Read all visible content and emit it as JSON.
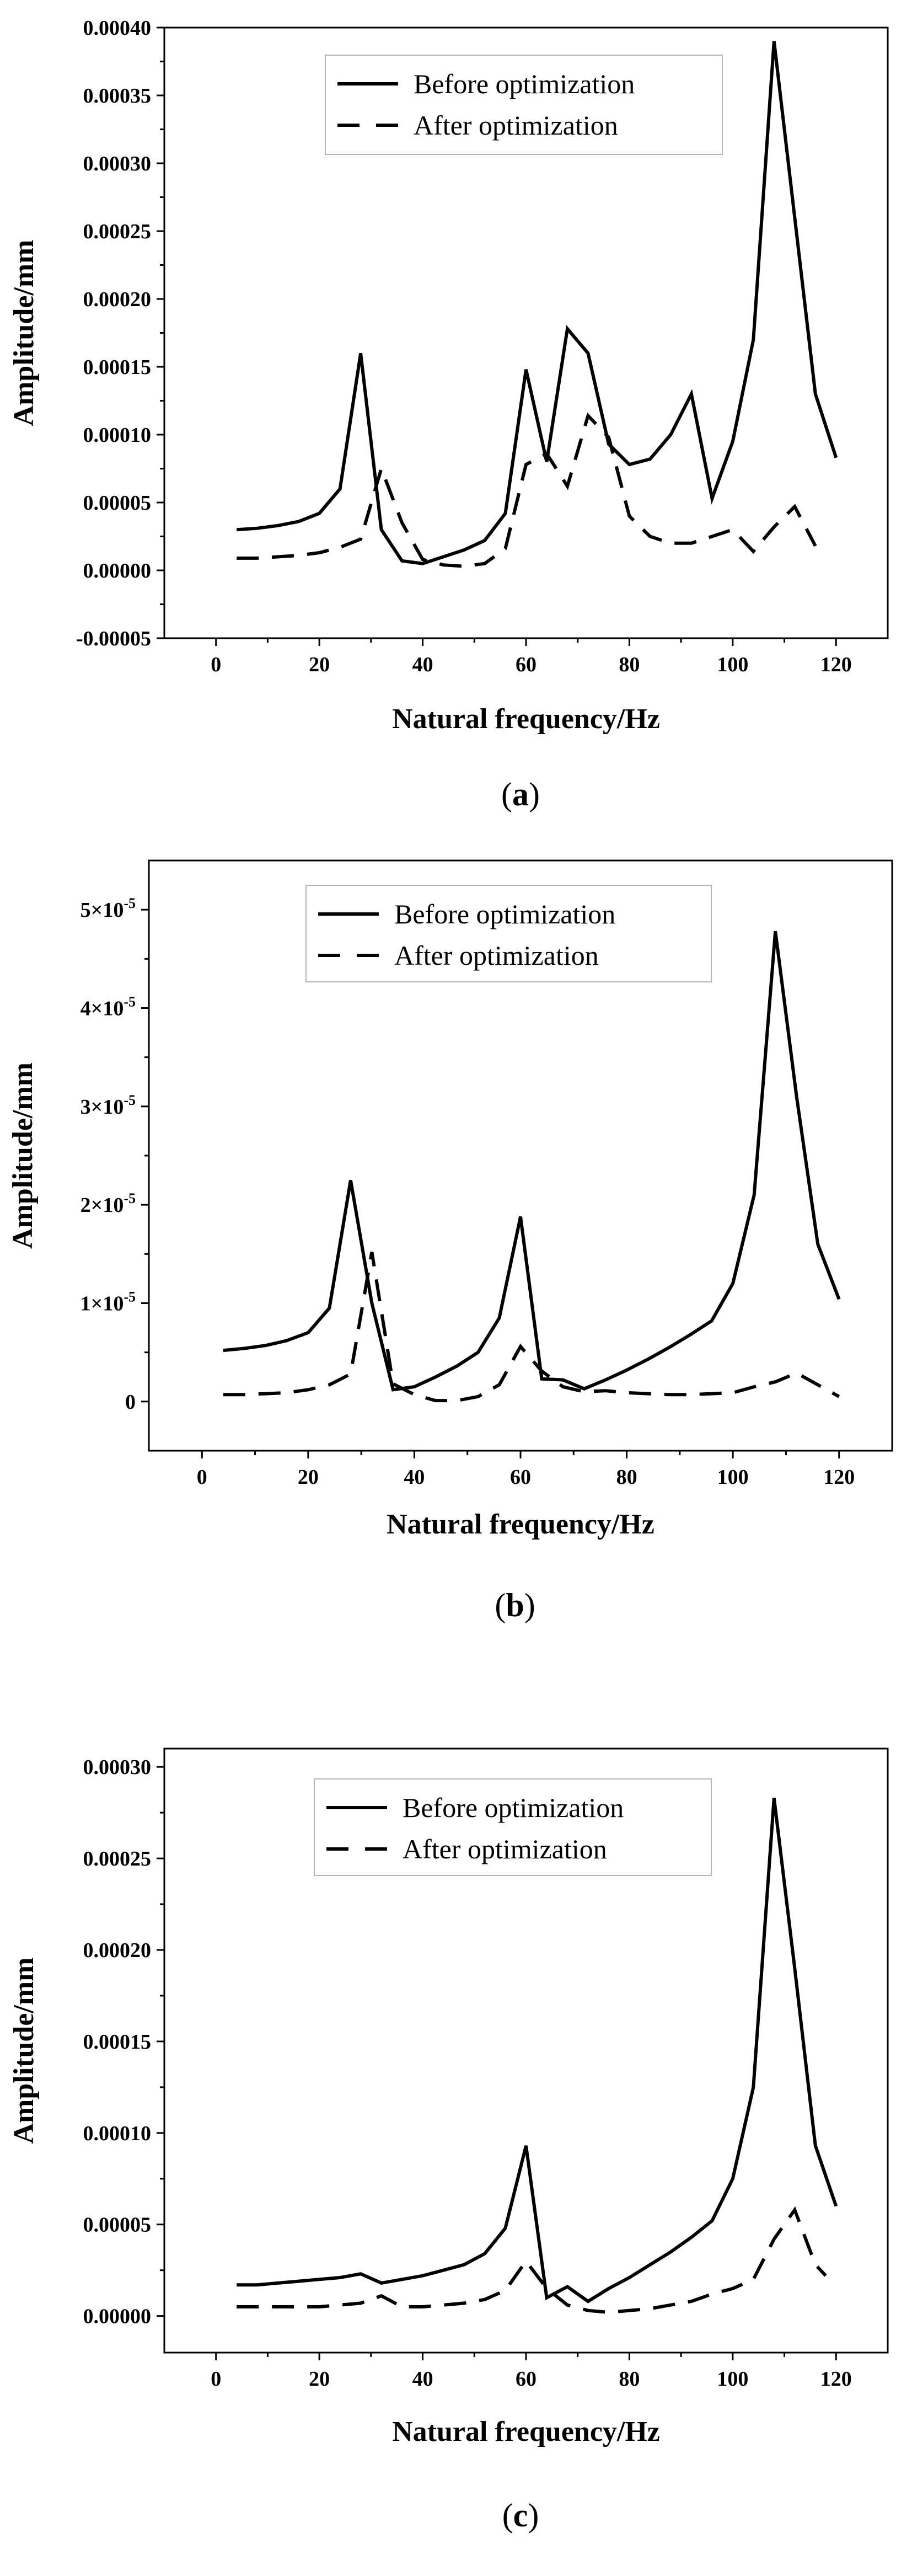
{
  "chart_data": [
    {
      "type": "line",
      "panel_label": "a",
      "xlabel": "Natural frequency/Hz",
      "ylabel": "Amplitude/mm",
      "xlim": [
        -10,
        130
      ],
      "ylim": [
        -5e-05,
        0.0004
      ],
      "xticks": [
        0,
        20,
        40,
        60,
        80,
        100,
        120
      ],
      "xtick_labels": [
        "0",
        "20",
        "40",
        "60",
        "80",
        "100",
        "120"
      ],
      "yticks": [
        -5e-05,
        0,
        5e-05,
        0.0001,
        0.00015,
        0.0002,
        0.00025,
        0.0003,
        0.00035,
        0.0004
      ],
      "ytick_labels": [
        "-0.00005",
        "0.00000",
        "0.00005",
        "0.00010",
        "0.00015",
        "0.00020",
        "0.00025",
        "0.00030",
        "0.00035",
        "0.00040"
      ],
      "legend_position": "top-center",
      "series": [
        {
          "name": "Before optimization",
          "style": "solid",
          "x": [
            4,
            8,
            12,
            16,
            20,
            24,
            28,
            32,
            36,
            40,
            44,
            48,
            52,
            56,
            60,
            64,
            68,
            72,
            76,
            80,
            84,
            88,
            92,
            96,
            100,
            104,
            108,
            112,
            116,
            120
          ],
          "y": [
            3e-05,
            3.1e-05,
            3.3e-05,
            3.6e-05,
            4.2e-05,
            6e-05,
            0.00016,
            3e-05,
            7e-06,
            5e-06,
            1e-05,
            1.5e-05,
            2.2e-05,
            4.2e-05,
            0.000148,
            8e-05,
            0.000178,
            0.00016,
            9.3e-05,
            7.8e-05,
            8.2e-05,
            0.0001,
            0.00013,
            5.3e-05,
            9.5e-05,
            0.00017,
            0.00039,
            0.00026,
            0.00013,
            8.3e-05
          ]
        },
        {
          "name": "After optimization",
          "style": "dashed",
          "x": [
            4,
            8,
            12,
            16,
            20,
            24,
            28,
            32,
            36,
            40,
            44,
            48,
            52,
            56,
            60,
            64,
            68,
            72,
            76,
            80,
            84,
            88,
            92,
            96,
            100,
            104,
            108,
            112,
            116
          ],
          "y": [
            9e-06,
            9e-06,
            1e-05,
            1.1e-05,
            1.3e-05,
            1.7e-05,
            2.3e-05,
            7.5e-05,
            3.5e-05,
            8e-06,
            4e-06,
            3e-06,
            5e-06,
            1.6e-05,
            7.8e-05,
            8.6e-05,
            6.2e-05,
            0.000114,
            9.8e-05,
            4e-05,
            2.5e-05,
            2e-05,
            2e-05,
            2.5e-05,
            3e-05,
            1.4e-05,
            3.2e-05,
            4.7e-05,
            1.8e-05
          ]
        }
      ]
    },
    {
      "type": "line",
      "panel_label": "b",
      "xlabel": "Natural frequency/Hz",
      "ylabel": "Amplitude/mm",
      "xlim": [
        -10,
        130
      ],
      "ylim": [
        -5e-06,
        5.5e-05
      ],
      "xticks": [
        0,
        20,
        40,
        60,
        80,
        100,
        120
      ],
      "xtick_labels": [
        "0",
        "20",
        "40",
        "60",
        "80",
        "100",
        "120"
      ],
      "yticks": [
        0,
        1e-05,
        2e-05,
        3e-05,
        4e-05,
        5e-05
      ],
      "ytick_labels": [
        {
          "mantissa": "0",
          "exponent": ""
        },
        {
          "mantissa": "1×10",
          "exponent": "-5"
        },
        {
          "mantissa": "2×10",
          "exponent": "-5"
        },
        {
          "mantissa": "3×10",
          "exponent": "-5"
        },
        {
          "mantissa": "4×10",
          "exponent": "-5"
        },
        {
          "mantissa": "5×10",
          "exponent": "-5"
        }
      ],
      "legend_position": "top-center",
      "series": [
        {
          "name": "Before optimization",
          "style": "solid",
          "x": [
            4,
            8,
            12,
            16,
            20,
            24,
            28,
            32,
            36,
            40,
            44,
            48,
            52,
            56,
            60,
            64,
            68,
            72,
            76,
            80,
            84,
            88,
            92,
            96,
            100,
            104,
            108,
            112,
            116,
            120
          ],
          "y": [
            5.2e-06,
            5.4e-06,
            5.7e-06,
            6.2e-06,
            7e-06,
            9.5e-06,
            2.25e-05,
            1e-05,
            1.2e-06,
            1.5e-06,
            2.5e-06,
            3.6e-06,
            5e-06,
            8.5e-06,
            1.88e-05,
            2.3e-06,
            2.2e-06,
            1.3e-06,
            2.2e-06,
            3.2e-06,
            4.3e-06,
            5.5e-06,
            6.8e-06,
            8.2e-06,
            1.2e-05,
            2.1e-05,
            4.78e-05,
            3.1e-05,
            1.6e-05,
            1.04e-05
          ]
        },
        {
          "name": "After optimization",
          "style": "dashed",
          "x": [
            4,
            8,
            12,
            16,
            20,
            24,
            28,
            32,
            36,
            40,
            44,
            48,
            52,
            56,
            60,
            64,
            68,
            72,
            76,
            80,
            84,
            88,
            92,
            96,
            100,
            104,
            108,
            112,
            116,
            120
          ],
          "y": [
            7e-07,
            7e-07,
            8e-07,
            9e-07,
            1.2e-06,
            1.7e-06,
            2.8e-06,
            1.52e-05,
            1.8e-06,
            7e-07,
            1e-07,
            1e-07,
            5e-07,
            1.7e-06,
            5.6e-06,
            3.1e-06,
            1.5e-06,
            1e-06,
            1.1e-06,
            9e-07,
            8e-07,
            7e-07,
            7e-07,
            8e-07,
            9e-07,
            1.5e-06,
            2e-06,
            2.9e-06,
            1.7e-06,
            5e-07
          ]
        }
      ]
    },
    {
      "type": "line",
      "panel_label": "c",
      "xlabel": "Natural frequency/Hz",
      "ylabel": "Amplitude/mm",
      "xlim": [
        -10,
        130
      ],
      "ylim": [
        -2e-05,
        0.00031
      ],
      "xticks": [
        0,
        20,
        40,
        60,
        80,
        100,
        120
      ],
      "xtick_labels": [
        "0",
        "20",
        "40",
        "60",
        "80",
        "100",
        "120"
      ],
      "yticks": [
        0,
        5e-05,
        0.0001,
        0.00015,
        0.0002,
        0.00025,
        0.0003
      ],
      "ytick_labels": [
        "0.00000",
        "0.00005",
        "0.00010",
        "0.00015",
        "0.00020",
        "0.00025",
        "0.00030"
      ],
      "legend_position": "top-center",
      "series": [
        {
          "name": "Before optimization",
          "style": "solid",
          "x": [
            4,
            8,
            12,
            16,
            20,
            24,
            28,
            32,
            36,
            40,
            44,
            48,
            52,
            56,
            60,
            64,
            68,
            72,
            76,
            80,
            84,
            88,
            92,
            96,
            100,
            104,
            108,
            112,
            116,
            120
          ],
          "y": [
            1.7e-05,
            1.7e-05,
            1.8e-05,
            1.9e-05,
            2e-05,
            2.1e-05,
            2.3e-05,
            1.8e-05,
            2e-05,
            2.2e-05,
            2.5e-05,
            2.8e-05,
            3.4e-05,
            4.8e-05,
            9.3e-05,
            1e-05,
            1.6e-05,
            8e-06,
            1.5e-05,
            2.1e-05,
            2.8e-05,
            3.5e-05,
            4.3e-05,
            5.2e-05,
            7.5e-05,
            0.000125,
            0.000283,
            0.00019,
            9.3e-05,
            6e-05
          ]
        },
        {
          "name": "After optimization",
          "style": "dashed",
          "x": [
            4,
            8,
            12,
            16,
            20,
            24,
            28,
            32,
            36,
            40,
            44,
            48,
            52,
            56,
            60,
            64,
            68,
            72,
            76,
            80,
            84,
            88,
            92,
            96,
            100,
            104,
            108,
            112,
            116,
            118
          ],
          "y": [
            5e-06,
            5e-06,
            5e-06,
            5e-06,
            5e-06,
            6e-06,
            7e-06,
            1.1e-05,
            5e-06,
            5e-06,
            6e-06,
            7e-06,
            9e-06,
            1.4e-05,
            3e-05,
            1.5e-05,
            6e-06,
            3e-06,
            2e-06,
            3e-06,
            4e-06,
            6e-06,
            8e-06,
            1.2e-05,
            1.5e-05,
            2e-05,
            4.2e-05,
            5.8e-05,
            2.8e-05,
            2.2e-05
          ]
        }
      ]
    }
  ]
}
